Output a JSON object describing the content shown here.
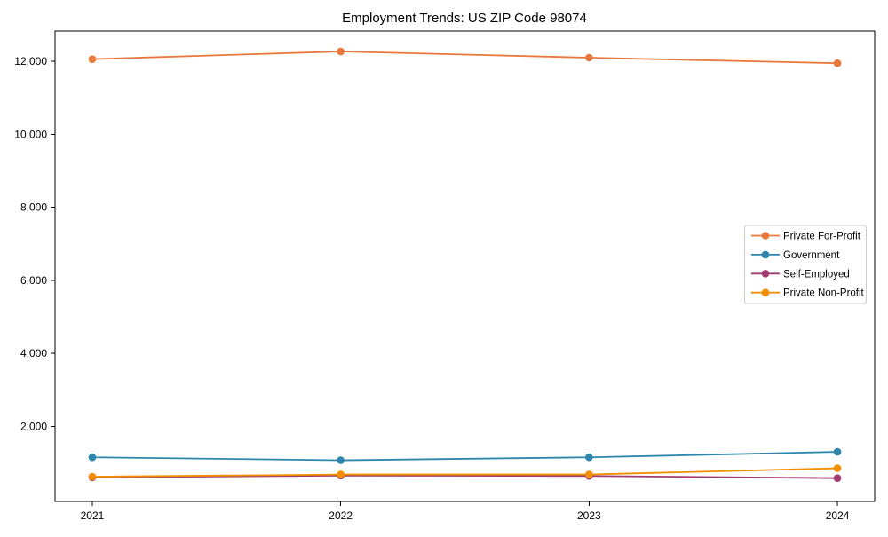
{
  "page": {
    "background": "#ffffff",
    "text_color": "#000000",
    "spine_color": "#000000"
  },
  "chart_data": {
    "type": "line",
    "title": "Employment Trends: US ZIP Code 98074",
    "xlabel": "",
    "ylabel": "",
    "grid": false,
    "x": [
      2021,
      2022,
      2023,
      2024
    ],
    "x_tick_labels": [
      "2021",
      "2022",
      "2023",
      "2024"
    ],
    "y_ticks": [
      2000,
      4000,
      6000,
      8000,
      10000,
      12000
    ],
    "y_tick_labels": [
      "2,000",
      "4,000",
      "6,000",
      "8,000",
      "10,000",
      "12,000"
    ],
    "xlim": [
      2020.85,
      2024.15
    ],
    "ylim": [
      -60,
      12830
    ],
    "marker": "circle",
    "legend": {
      "position": "center-right",
      "border_color": "#cccccc",
      "background": "#ffffff"
    },
    "series": [
      {
        "name": "Private For-Profit",
        "color": "#E8783C",
        "values": [
          12060,
          12270,
          12100,
          11950
        ]
      },
      {
        "name": "Government",
        "color": "#2E86AB",
        "values": [
          1150,
          1070,
          1150,
          1300
        ]
      },
      {
        "name": "Self-Employed",
        "color": "#A23B72",
        "values": [
          600,
          650,
          640,
          580
        ]
      },
      {
        "name": "Private Non-Profit",
        "color": "#F18F01",
        "values": [
          620,
          680,
          680,
          850
        ]
      }
    ]
  }
}
